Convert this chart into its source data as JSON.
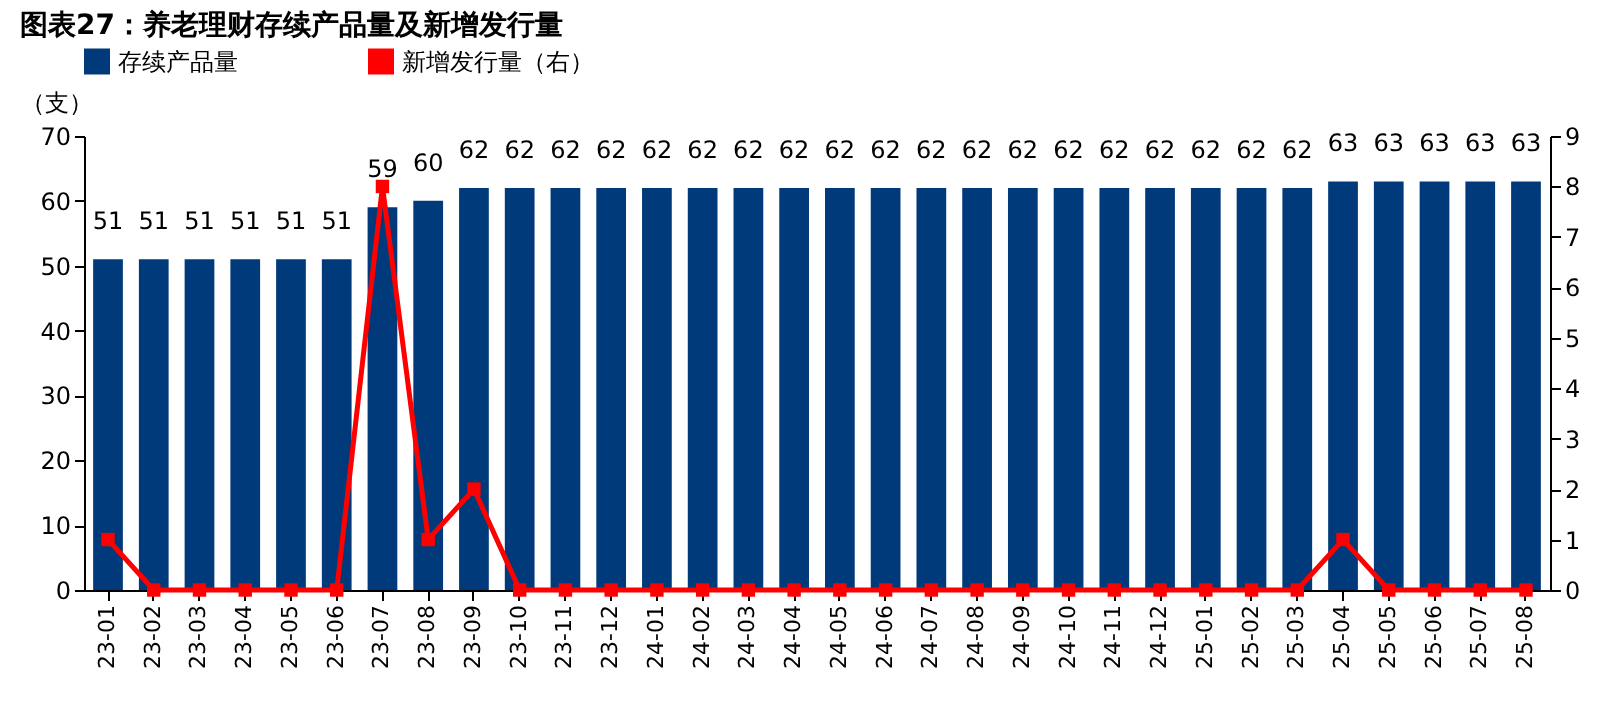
{
  "chart_data": {
    "type": "bar",
    "title": "图表27：养老理财存续产品量及新增发行量",
    "ylabel": "（支）",
    "categories": [
      "23-01",
      "23-02",
      "23-03",
      "23-04",
      "23-05",
      "23-06",
      "23-07",
      "23-08",
      "23-09",
      "23-10",
      "23-11",
      "23-12",
      "24-01",
      "24-02",
      "24-03",
      "24-04",
      "24-05",
      "24-06",
      "24-07",
      "24-08",
      "24-09",
      "24-10",
      "24-11",
      "24-12",
      "25-01",
      "25-02",
      "25-03",
      "25-04",
      "25-05",
      "25-06",
      "25-07",
      "25-08"
    ],
    "series": [
      {
        "name": "存续产品量",
        "color": "#003a7a",
        "values": [
          51,
          51,
          51,
          51,
          51,
          51,
          59,
          60,
          62,
          62,
          62,
          62,
          62,
          62,
          62,
          62,
          62,
          62,
          62,
          62,
          62,
          62,
          62,
          62,
          62,
          62,
          62,
          63,
          63,
          63,
          63,
          63
        ],
        "value_labels": [
          "51",
          "51",
          "51",
          "51",
          "51",
          "51",
          "59",
          "60",
          "62",
          "62",
          "62",
          "62",
          "62",
          "62",
          "62",
          "62",
          "62",
          "62",
          "62",
          "62",
          "62",
          "62",
          "62",
          "62",
          "62",
          "62",
          "62",
          "63",
          "63",
          "63",
          "63",
          "63"
        ]
      },
      {
        "name": "新增发行量（右）",
        "type": "line",
        "axis": "y2",
        "color": "#ff0000",
        "values": [
          1,
          0,
          0,
          0,
          0,
          0,
          8,
          1,
          2,
          0,
          0,
          0,
          0,
          0,
          0,
          0,
          0,
          0,
          0,
          0,
          0,
          0,
          0,
          0,
          0,
          0,
          0,
          1,
          0,
          0,
          0,
          0
        ]
      }
    ],
    "ylim": [
      0,
      70
    ],
    "yticks": [
      0,
      10,
      20,
      30,
      40,
      50,
      60,
      70
    ],
    "y2lim": [
      0,
      9
    ],
    "y2ticks": [
      0,
      1,
      2,
      3,
      4,
      5,
      6,
      7,
      8,
      9
    ],
    "legend": "top",
    "grid": false,
    "marker": "square"
  }
}
